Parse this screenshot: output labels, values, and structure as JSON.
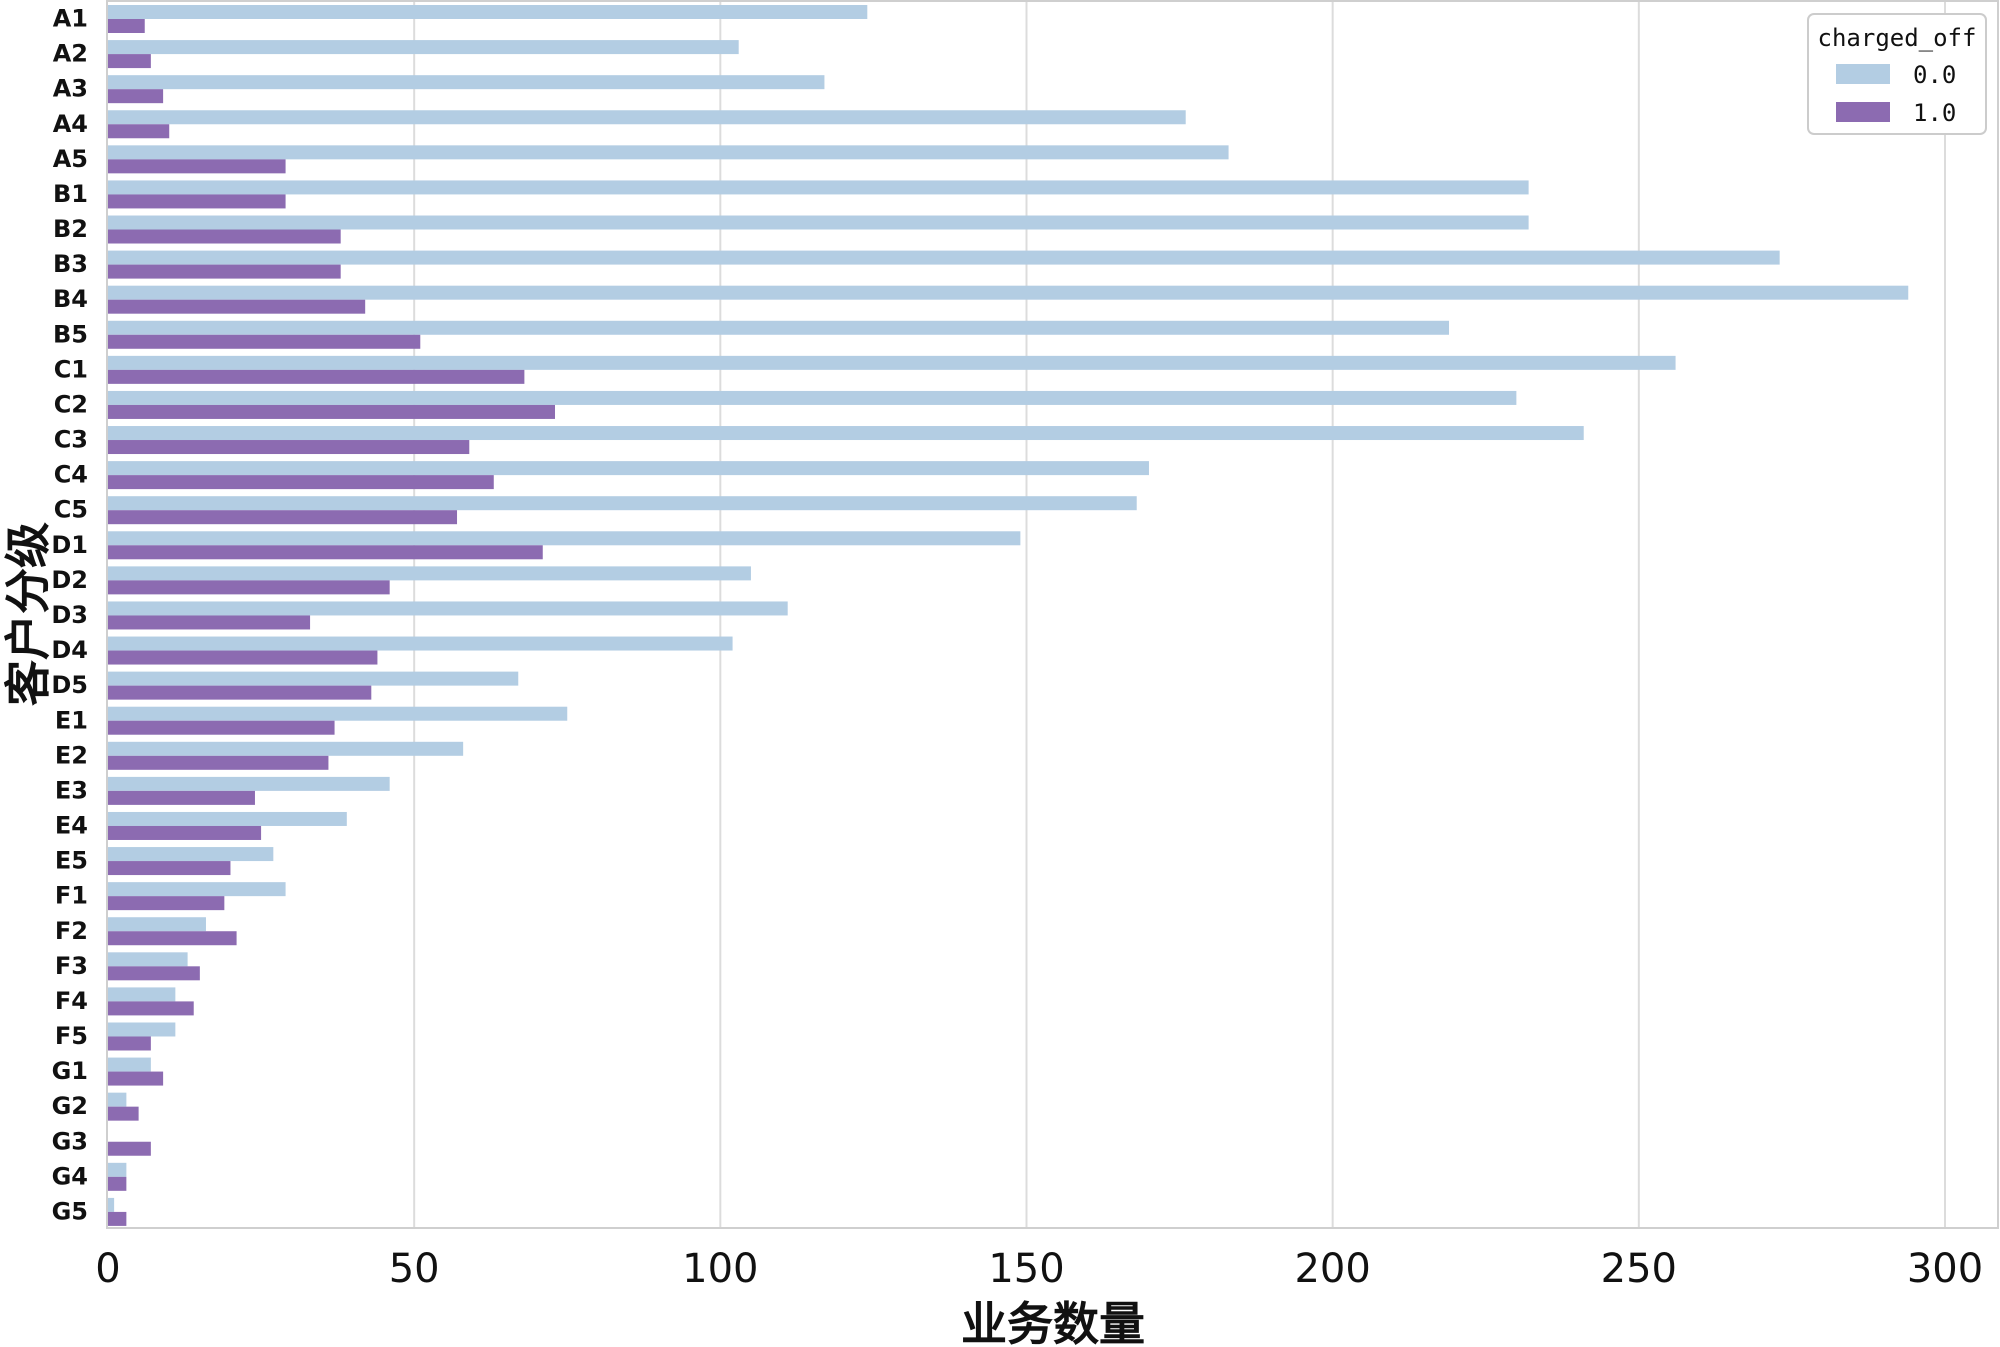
{
  "chart_data": {
    "type": "bar",
    "orientation": "horizontal",
    "title": "",
    "xlabel": "业务数量",
    "ylabel": "客户分级",
    "xlim": [
      0,
      305
    ],
    "xticks": [
      0,
      50,
      100,
      150,
      200,
      250,
      300
    ],
    "grid": true,
    "legend_position": "top-right",
    "legend_title": "charged_off",
    "categories": [
      "A1",
      "A2",
      "A3",
      "A4",
      "A5",
      "B1",
      "B2",
      "B3",
      "B4",
      "B5",
      "C1",
      "C2",
      "C3",
      "C4",
      "C5",
      "D1",
      "D2",
      "D3",
      "D4",
      "D5",
      "E1",
      "E2",
      "E3",
      "E4",
      "E5",
      "F1",
      "F2",
      "F3",
      "F4",
      "F5",
      "G1",
      "G2",
      "G3",
      "G4",
      "G5"
    ],
    "series": [
      {
        "name": "0.0",
        "color": "#b3cde3",
        "values": [
          124,
          103,
          117,
          176,
          183,
          232,
          232,
          273,
          294,
          219,
          256,
          230,
          241,
          170,
          168,
          149,
          105,
          111,
          102,
          67,
          75,
          58,
          46,
          39,
          27,
          29,
          16,
          13,
          11,
          11,
          7,
          3,
          0,
          3,
          1
        ]
      },
      {
        "name": "1.0",
        "color": "#8c6bb1",
        "values": [
          6,
          7,
          9,
          10,
          29,
          29,
          38,
          38,
          42,
          51,
          68,
          73,
          59,
          63,
          57,
          71,
          46,
          33,
          44,
          43,
          37,
          36,
          24,
          25,
          20,
          19,
          21,
          15,
          14,
          7,
          9,
          5,
          7,
          3,
          3
        ]
      }
    ]
  }
}
